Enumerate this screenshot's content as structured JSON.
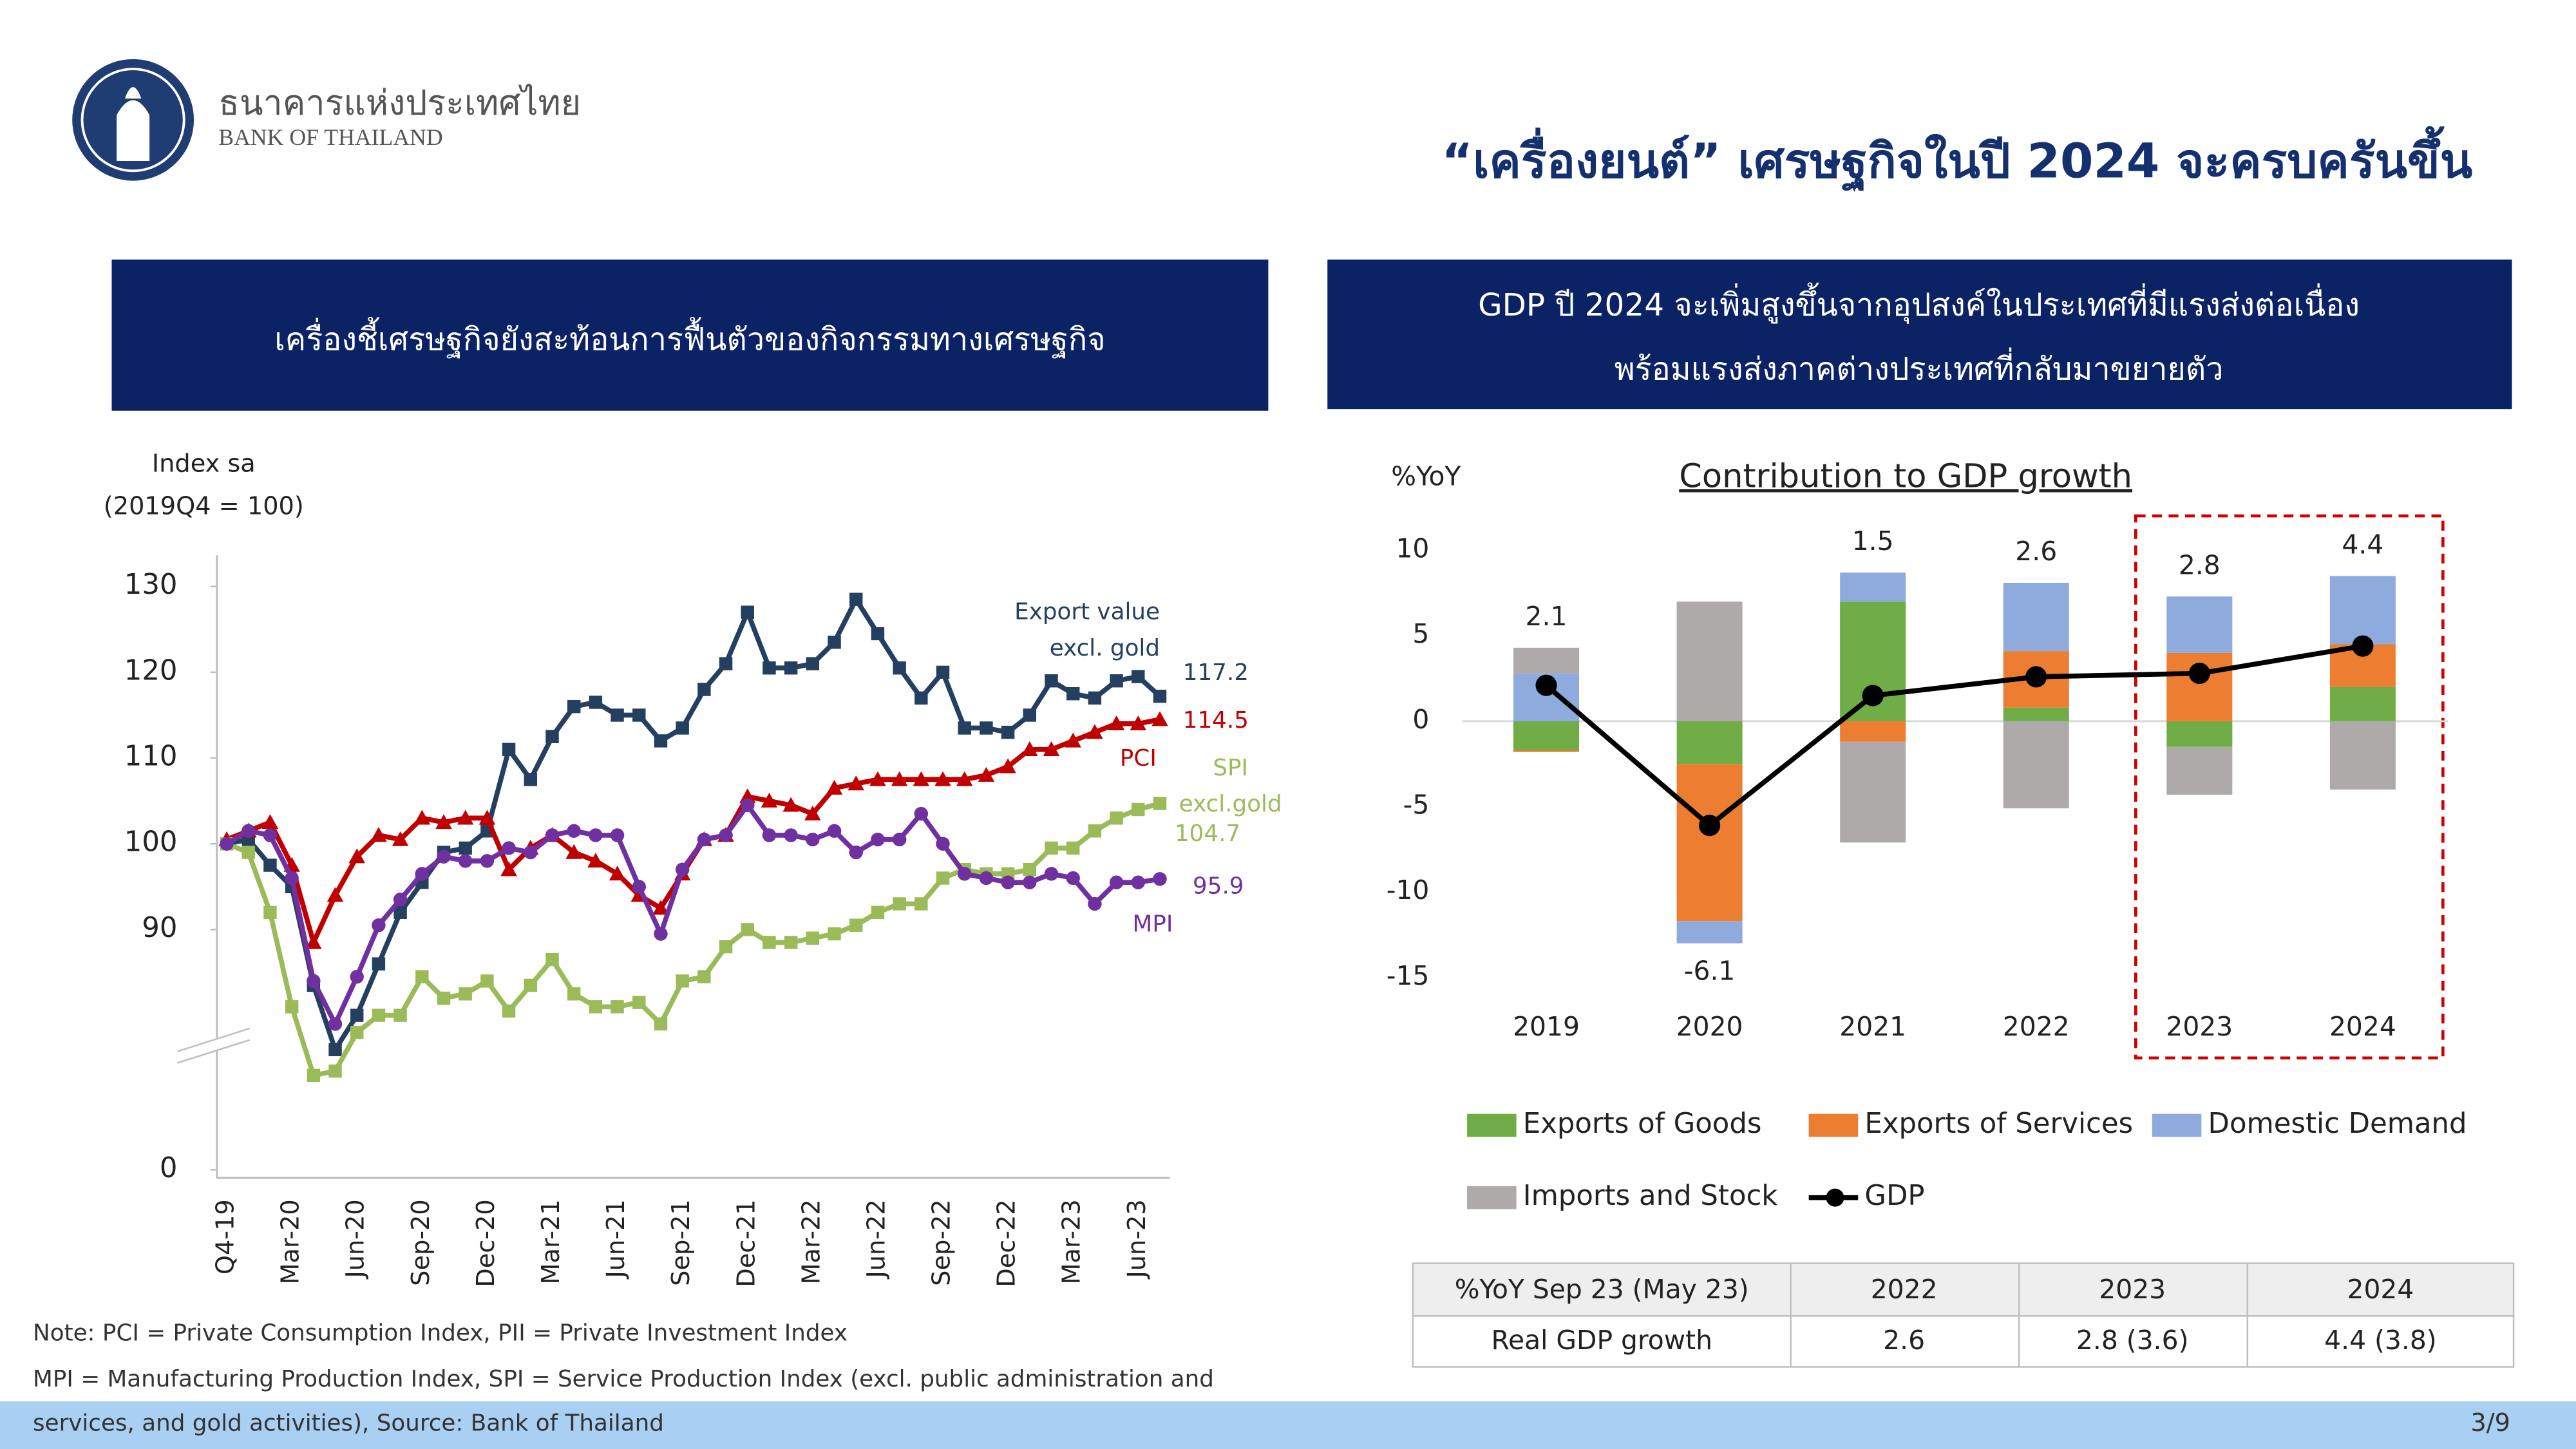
{
  "header": {
    "logo_thai": "ธนาคารแห่งประเทศไทย",
    "logo_en": "BANK OF THAILAND",
    "title": "“เครื่องยนต์” เศรษฐกิจในปี 2024 จะครบครันขึ้น"
  },
  "left_panel": {
    "heading": "เครื่องชี้เศรษฐกิจยังสะท้อนการฟื้นตัวของกิจกรรมทางเศรษฐกิจ"
  },
  "right_panel": {
    "heading": [
      "GDP ปี 2024 จะเพิ่มสูงขึ้นจากอุปสงค์ในประเทศที่มีแรงส่งต่อเนื่อง",
      "พร้อมแรงส่งภาคต่างประเทศที่กลับมาขยายตัว"
    ]
  },
  "chart_data": [
    {
      "type": "line",
      "y_label": "Index sa",
      "y_label_note": "(2019Q4 = 100)",
      "categories": [
        "Q4-19",
        null,
        null,
        "Mar-20",
        null,
        null,
        "Jun-20",
        null,
        null,
        "Sep-20",
        null,
        null,
        "Dec-20",
        null,
        null,
        "Mar-21",
        null,
        null,
        "Jun-21",
        null,
        null,
        "Sep-21",
        null,
        null,
        "Dec-21",
        null,
        null,
        "Mar-22",
        null,
        null,
        "Jun-22",
        null,
        null,
        "Sep-22",
        null,
        null,
        "Dec-22",
        null,
        null,
        "Mar-23",
        null,
        null,
        "Jun-23",
        null
      ],
      "ylim": [
        0,
        130
      ],
      "y_break": [
        0,
        62
      ],
      "yticks": [
        0,
        90,
        100,
        110,
        120,
        130
      ],
      "grid": false,
      "series": [
        {
          "name": "Export value excl. gold",
          "color": "#243f60",
          "marker": "square",
          "values": [
            100,
            100.5,
            97.5,
            95,
            83.5,
            76,
            80,
            86,
            92,
            95.5,
            99,
            99.5,
            101.5,
            111,
            107.5,
            112.5,
            116,
            116.5,
            115,
            115,
            112,
            113.5,
            118,
            121,
            127,
            120.5,
            120.5,
            121,
            123.5,
            128.5,
            124.5,
            120.5,
            117,
            120,
            113.5,
            113.5,
            113,
            115,
            119,
            117.5,
            117,
            119,
            119.5,
            117.2
          ]
        },
        {
          "name": "PCI",
          "color": "#c00000",
          "marker": "triangle",
          "values": [
            100.5,
            101.5,
            102.5,
            97.5,
            88.5,
            94,
            98.5,
            101,
            100.5,
            103,
            102.5,
            103,
            103,
            97,
            99.5,
            101,
            99,
            98,
            96.5,
            94,
            92.5,
            96.5,
            100.5,
            101,
            105.5,
            105,
            104.5,
            103.5,
            106.5,
            107,
            107.5,
            107.5,
            107.5,
            107.5,
            107.5,
            108,
            109,
            111,
            111,
            112,
            113,
            114,
            114,
            114.5
          ]
        },
        {
          "name": "SPI excl.gold",
          "color": "#9bbb59",
          "marker": "square",
          "values": [
            100,
            99,
            92,
            81,
            73,
            73.5,
            78,
            80,
            80,
            84.5,
            82,
            82.5,
            84,
            80.5,
            83.5,
            86.5,
            82.5,
            81,
            81,
            81.5,
            79,
            84,
            84.5,
            88,
            90,
            88.5,
            88.5,
            89,
            89.5,
            90.5,
            92,
            93,
            93,
            96,
            97,
            96.5,
            96.5,
            97,
            99.5,
            99.5,
            101.5,
            103,
            104,
            104.7
          ]
        },
        {
          "name": "MPI",
          "color": "#7030a0",
          "marker": "circle",
          "values": [
            100,
            101.5,
            101,
            96,
            84,
            79,
            84.5,
            90.5,
            93.5,
            96.5,
            98.5,
            98,
            98,
            99.5,
            99,
            101,
            101.5,
            101,
            101,
            95,
            89.5,
            97,
            100.5,
            101,
            104.5,
            101,
            101,
            100.5,
            101.5,
            99,
            100.5,
            100.5,
            103.5,
            100,
            96.5,
            96,
            95.5,
            95.5,
            96.5,
            96,
            93,
            95.5,
            95.5,
            95.9
          ]
        }
      ]
    },
    {
      "type": "bar",
      "stacked": true,
      "title": "Contribution to GDP growth",
      "y_label": "%YoY",
      "categories": [
        "2019",
        "2020",
        "2021",
        "2022",
        "2023",
        "2024"
      ],
      "ylim": [
        -15,
        10
      ],
      "yticks": [
        -15,
        -10,
        -5,
        0,
        5,
        10
      ],
      "grid": false,
      "series": [
        {
          "name": "Exports of Goods",
          "color": "#70ad47",
          "values": [
            -1.7,
            -2.5,
            7.0,
            0.8,
            -1.5,
            2.0
          ]
        },
        {
          "name": "Exports of Services",
          "color": "#ed7d31",
          "values": [
            -0.1,
            -9.2,
            -1.2,
            3.3,
            4.0,
            2.5
          ]
        },
        {
          "name": "Domestic Demand",
          "color": "#8faadc",
          "values": [
            2.8,
            -1.3,
            1.7,
            4.0,
            3.3,
            4.0
          ]
        },
        {
          "name": "Imports and Stock",
          "color": "#aeaaaa",
          "values": [
            1.5,
            7.0,
            -5.9,
            -5.1,
            -2.8,
            -4.0
          ]
        },
        {
          "name": "GDP",
          "type": "line",
          "color": "#000000",
          "values": [
            2.1,
            -6.1,
            1.5,
            2.6,
            2.8,
            4.4
          ]
        }
      ]
    }
  ],
  "table": {
    "header": [
      "%YoY Sep 23 (May 23)",
      "2022",
      "2023",
      "2024"
    ],
    "rows": [
      [
        "Real GDP growth",
        "2.6",
        "2.8 (3.6)",
        "4.4 (3.8)"
      ]
    ]
  },
  "notes": [
    "Note: PCI = Private Consumption Index, PII = Private Investment Index",
    "MPI = Manufacturing Production Index, SPI = Service Production Index (excl. public administration and",
    "services, and gold activities), Source: Bank of Thailand"
  ],
  "page_number": "3/9"
}
